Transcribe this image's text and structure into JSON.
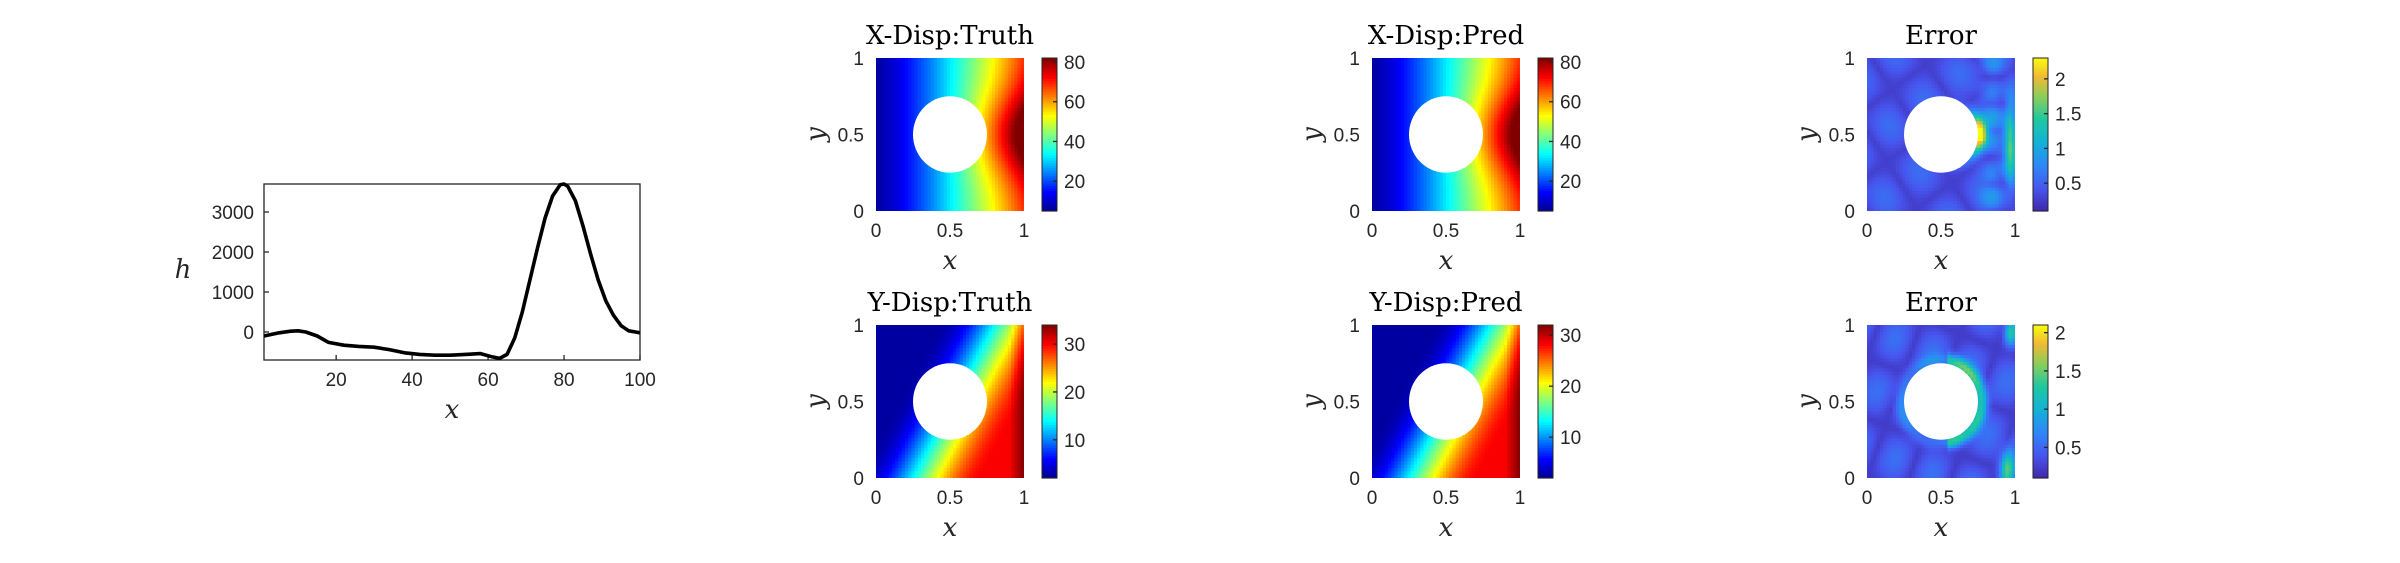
{
  "chart_data": [
    {
      "id": "h-curve",
      "type": "line",
      "title": "",
      "xlabel": "x",
      "ylabel": "h",
      "xlim": [
        1,
        100
      ],
      "ylim": [
        -700,
        3700
      ],
      "xticks": [
        20,
        40,
        60,
        80,
        100
      ],
      "yticks": [
        0,
        1000,
        2000,
        3000
      ],
      "series": [
        {
          "color": "#000000",
          "x": [
            1,
            5,
            8,
            10,
            12,
            15,
            18,
            22,
            26,
            30,
            34,
            38,
            42,
            46,
            50,
            54,
            58,
            61,
            63,
            65,
            67,
            69,
            71,
            73,
            75,
            77,
            79,
            80,
            81,
            83,
            85,
            87,
            89,
            91,
            93,
            95,
            97,
            100
          ],
          "y": [
            -100,
            -20,
            20,
            30,
            0,
            -100,
            -260,
            -330,
            -360,
            -380,
            -440,
            -520,
            -560,
            -580,
            -580,
            -560,
            -540,
            -620,
            -660,
            -560,
            -150,
            500,
            1300,
            2100,
            2850,
            3400,
            3680,
            3700,
            3640,
            3280,
            2650,
            1950,
            1300,
            780,
            420,
            160,
            30,
            -20
          ]
        }
      ]
    },
    {
      "id": "x-disp-truth",
      "type": "heatmap",
      "title": "X-Disp:Truth",
      "xlabel": "x",
      "ylabel": "y",
      "xlim": [
        0,
        1
      ],
      "ylim": [
        0,
        1
      ],
      "xticks": [
        "0",
        "0.5",
        "1"
      ],
      "yticks": [
        "0",
        "0.5",
        "1"
      ],
      "colormap": "jet",
      "clim": [
        5,
        82
      ],
      "colorbar_ticks": [
        "20",
        "40",
        "60",
        "80"
      ],
      "colorbar_tick_values": [
        20,
        40,
        60,
        80
      ],
      "field": "xdisp",
      "hole": {
        "cx": 0.5,
        "cy": 0.5,
        "r": 0.25
      }
    },
    {
      "id": "x-disp-pred",
      "type": "heatmap",
      "title": "X-Disp:Pred",
      "xlabel": "x",
      "ylabel": "y",
      "xlim": [
        0,
        1
      ],
      "ylim": [
        0,
        1
      ],
      "xticks": [
        "0",
        "0.5",
        "1"
      ],
      "yticks": [
        "0",
        "0.5",
        "1"
      ],
      "colormap": "jet",
      "clim": [
        5,
        82
      ],
      "colorbar_ticks": [
        "20",
        "40",
        "60",
        "80"
      ],
      "colorbar_tick_values": [
        20,
        40,
        60,
        80
      ],
      "field": "xdisp",
      "hole": {
        "cx": 0.5,
        "cy": 0.5,
        "r": 0.25
      }
    },
    {
      "id": "x-error",
      "type": "heatmap",
      "title": "Error",
      "xlabel": "x",
      "ylabel": "y",
      "xlim": [
        0,
        1
      ],
      "ylim": [
        0,
        1
      ],
      "xticks": [
        "0",
        "0.5",
        "1"
      ],
      "yticks": [
        "0",
        "0.5",
        "1"
      ],
      "colormap": "parula",
      "clim": [
        0.1,
        2.3
      ],
      "colorbar_ticks": [
        "0.5",
        "1",
        "1.5",
        "2"
      ],
      "colorbar_tick_values": [
        0.5,
        1,
        1.5,
        2
      ],
      "field": "xerr",
      "hole": {
        "cx": 0.5,
        "cy": 0.5,
        "r": 0.25
      }
    },
    {
      "id": "y-disp-truth",
      "type": "heatmap",
      "title": "Y-Disp:Truth",
      "xlabel": "x",
      "ylabel": "y",
      "xlim": [
        0,
        1
      ],
      "ylim": [
        0,
        1
      ],
      "xticks": [
        "0",
        "0.5",
        "1"
      ],
      "yticks": [
        "0",
        "0.5",
        "1"
      ],
      "colormap": "jet",
      "clim": [
        2,
        34
      ],
      "colorbar_ticks": [
        "10",
        "20",
        "30"
      ],
      "colorbar_tick_values": [
        10,
        20,
        30
      ],
      "field": "ydisp",
      "hole": {
        "cx": 0.5,
        "cy": 0.5,
        "r": 0.25
      }
    },
    {
      "id": "y-disp-pred",
      "type": "heatmap",
      "title": "Y-Disp:Pred",
      "xlabel": "x",
      "ylabel": "y",
      "xlim": [
        0,
        1
      ],
      "ylim": [
        0,
        1
      ],
      "xticks": [
        "0",
        "0.5",
        "1"
      ],
      "yticks": [
        "0",
        "0.5",
        "1"
      ],
      "colormap": "jet",
      "clim": [
        2,
        32
      ],
      "colorbar_ticks": [
        "10",
        "20",
        "30"
      ],
      "colorbar_tick_values": [
        10,
        20,
        30
      ],
      "field": "ydisp",
      "hole": {
        "cx": 0.5,
        "cy": 0.5,
        "r": 0.25
      }
    },
    {
      "id": "y-error",
      "type": "heatmap",
      "title": "Error",
      "xlabel": "x",
      "ylabel": "y",
      "xlim": [
        0,
        1
      ],
      "ylim": [
        0,
        1
      ],
      "xticks": [
        "0",
        "0.5",
        "1"
      ],
      "yticks": [
        "0",
        "0.5",
        "1"
      ],
      "colormap": "parula",
      "clim": [
        0.1,
        2.1
      ],
      "colorbar_ticks": [
        "0.5",
        "1",
        "1.5",
        "2"
      ],
      "colorbar_tick_values": [
        0.5,
        1,
        1.5,
        2
      ],
      "field": "yerr",
      "hole": {
        "cx": 0.5,
        "cy": 0.5,
        "r": 0.25
      }
    }
  ]
}
